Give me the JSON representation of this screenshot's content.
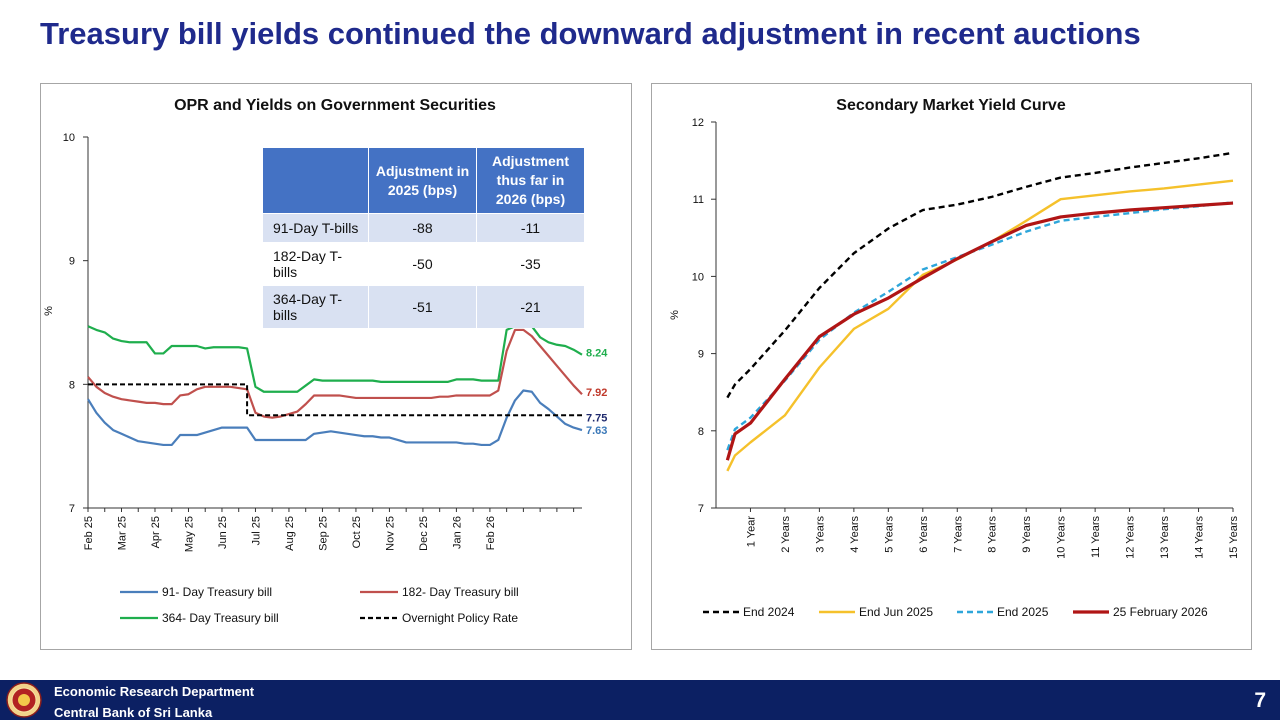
{
  "slide": {
    "title": "Treasury bill yields continued the downward adjustment in recent auctions",
    "footer_line1": "Economic Research Department",
    "footer_line2": "Central Bank of Sri Lanka",
    "page_number": "7"
  },
  "colors": {
    "title": "#1f2a8c",
    "footer": "#0c2063",
    "tbill91": "#4a7ebb",
    "tbill182": "#c0504d",
    "tbill364": "#1fae4d",
    "opr": "#000000",
    "end2024": "#000000",
    "endjun2025": "#f5c12b",
    "end2025": "#2ea6da",
    "feb2026": "#b01515",
    "table_header": "#4472c4"
  },
  "table": {
    "headers": [
      "",
      "Adjustment in 2025 (bps)",
      "Adjustment thus far in 2026 (bps)"
    ],
    "rows": [
      {
        "label": "91-Day T-bills",
        "y2025": "-88",
        "y2026": "-11"
      },
      {
        "label": "182-Day T-bills",
        "y2025": "-50",
        "y2026": "-35"
      },
      {
        "label": "364-Day T-bills",
        "y2025": "-51",
        "y2026": "-21"
      }
    ]
  },
  "chart_data": [
    {
      "type": "line",
      "title": "OPR and Yields on Government Securities",
      "ylabel": "%",
      "ylim": [
        7,
        10
      ],
      "yticks": [
        "7",
        "8",
        "9",
        "10"
      ],
      "x_count": 54,
      "xtick_labels": [
        "Feb 25",
        "Mar 25",
        "Apr 25",
        "May 25",
        "Jun 25",
        "Jul 25",
        "Aug 25",
        "Sep 25",
        "Oct 25",
        "Nov 25",
        "Dec 25",
        "Jan 26",
        "Feb 26"
      ],
      "xtick_index": [
        0,
        4,
        8,
        12,
        16,
        20,
        24,
        28,
        32,
        36,
        40,
        44,
        48
      ],
      "legend_position": "bottom",
      "series": [
        {
          "key": "t91",
          "name": "91- Day Treasury bill",
          "style": "solid",
          "end_label": "7.63",
          "values": [
            7.88,
            7.77,
            7.69,
            7.63,
            7.6,
            7.57,
            7.54,
            7.53,
            7.52,
            7.51,
            7.51,
            7.59,
            7.59,
            7.59,
            7.61,
            7.63,
            7.65,
            7.65,
            7.65,
            7.65,
            7.55,
            7.55,
            7.55,
            7.55,
            7.55,
            7.55,
            7.55,
            7.6,
            7.61,
            7.62,
            7.61,
            7.6,
            7.59,
            7.58,
            7.58,
            7.57,
            7.57,
            7.55,
            7.53,
            7.53,
            7.53,
            7.53,
            7.53,
            7.53,
            7.53,
            7.52,
            7.52,
            7.51,
            7.51,
            7.55,
            7.73,
            7.87,
            7.95,
            7.94
          ]
        },
        {
          "key": "t182",
          "name": "182- Day Treasury bill",
          "style": "solid",
          "end_label": "7.92",
          "values": [
            8.06,
            7.98,
            7.93,
            7.9,
            7.88,
            7.87,
            7.86,
            7.85,
            7.85,
            7.84,
            7.84,
            7.91,
            7.92,
            7.96,
            7.98,
            7.98,
            7.98,
            7.98,
            7.97,
            7.96,
            7.77,
            7.74,
            7.73,
            7.74,
            7.76,
            7.78,
            7.84,
            7.91,
            7.91,
            7.91,
            7.91,
            7.9,
            7.89,
            7.89,
            7.89,
            7.89,
            7.89,
            7.89,
            7.89,
            7.89,
            7.89,
            7.89,
            7.9,
            7.9,
            7.91,
            7.91,
            7.91,
            7.91,
            7.91,
            7.95,
            8.27,
            8.44,
            8.44,
            8.39
          ]
        },
        {
          "key": "t364",
          "name": "364- Day Treasury bill",
          "style": "solid",
          "end_label": "8.24",
          "values": [
            8.47,
            8.44,
            8.42,
            8.37,
            8.35,
            8.34,
            8.34,
            8.34,
            8.25,
            8.25,
            8.31,
            8.31,
            8.31,
            8.31,
            8.29,
            8.3,
            8.3,
            8.3,
            8.3,
            8.29,
            7.98,
            7.94,
            7.94,
            7.94,
            7.94,
            7.94,
            7.99,
            8.04,
            8.03,
            8.03,
            8.03,
            8.03,
            8.03,
            8.03,
            8.03,
            8.02,
            8.02,
            8.02,
            8.02,
            8.02,
            8.02,
            8.02,
            8.02,
            8.02,
            8.04,
            8.04,
            8.04,
            8.03,
            8.03,
            8.03,
            8.44,
            8.47,
            8.48,
            8.47
          ]
        },
        {
          "key": "opr",
          "name": "Overnight Policy Rate",
          "style": "dashed",
          "end_label": "7.75",
          "values": [
            8.0,
            8.0,
            8.0,
            8.0,
            8.0,
            8.0,
            8.0,
            8.0,
            8.0,
            8.0,
            8.0,
            8.0,
            8.0,
            8.0,
            8.0,
            8.0,
            8.0,
            8.0,
            8.0,
            8.0,
            7.75,
            7.75,
            7.75,
            7.75,
            7.75,
            7.75,
            7.75,
            7.75,
            7.75,
            7.75,
            7.75,
            7.75,
            7.75,
            7.75,
            7.75,
            7.75,
            7.75,
            7.75,
            7.75,
            7.75,
            7.75,
            7.75,
            7.75,
            7.75,
            7.75,
            7.75,
            7.75,
            7.75,
            7.75,
            7.75,
            7.75,
            7.75,
            7.75,
            7.75
          ]
        }
      ],
      "series_tail": {
        "t91": [
          7.85,
          7.8,
          7.74,
          7.68,
          7.65,
          7.63
        ],
        "t182": [
          8.31,
          8.23,
          8.15,
          8.07,
          7.99,
          7.92
        ],
        "t364": [
          8.38,
          8.34,
          8.32,
          8.31,
          8.28,
          8.24
        ],
        "opr": [
          7.75,
          7.75,
          7.75,
          7.75,
          7.75,
          7.75
        ]
      }
    },
    {
      "type": "line",
      "title": "Secondary Market Yield Curve",
      "ylabel": "%",
      "ylim": [
        7,
        12
      ],
      "yticks": [
        "7",
        "8",
        "9",
        "10",
        "11",
        "12"
      ],
      "categories": [
        "1 Year",
        "2 Years",
        "3 Years",
        "4 Years",
        "5 Years",
        "6 Years",
        "7 Years",
        "8 Years",
        "9 Years",
        "10 Years",
        "11 Years",
        "12 Years",
        "13 Years",
        "14 Years",
        "15 Years"
      ],
      "x_start": 0.33,
      "legend_position": "bottom",
      "series": [
        {
          "key": "e24",
          "name": "End 2024",
          "style": "dashed",
          "x": [
            0.33,
            0.55,
            1,
            2,
            3,
            4,
            5,
            6,
            7,
            8,
            9,
            10,
            11,
            12,
            13,
            14,
            15
          ],
          "values": [
            8.43,
            8.6,
            8.8,
            9.3,
            9.85,
            10.3,
            10.62,
            10.86,
            10.93,
            11.03,
            11.16,
            11.28,
            11.34,
            11.41,
            11.47,
            11.53,
            11.6
          ]
        },
        {
          "key": "ej25",
          "name": "End Jun 2025",
          "style": "solid",
          "x": [
            0.33,
            0.55,
            1,
            2,
            3,
            4,
            5,
            6,
            7,
            8,
            9,
            10,
            11,
            12,
            13,
            14,
            15
          ],
          "values": [
            7.48,
            7.68,
            7.85,
            8.2,
            8.82,
            9.32,
            9.58,
            10.02,
            10.22,
            10.45,
            10.72,
            11.0,
            11.05,
            11.1,
            11.14,
            11.19,
            11.24
          ]
        },
        {
          "key": "e25",
          "name": "End 2025",
          "style": "dashed",
          "x": [
            0.33,
            0.55,
            1,
            2,
            3,
            4,
            5,
            6,
            7,
            8,
            9,
            10,
            11,
            12,
            13,
            14,
            15
          ],
          "values": [
            7.75,
            8.02,
            8.17,
            8.65,
            9.18,
            9.53,
            9.8,
            10.09,
            10.25,
            10.41,
            10.58,
            10.72,
            10.77,
            10.82,
            10.87,
            10.91,
            10.96
          ]
        },
        {
          "key": "f26",
          "name": "25 February 2026",
          "style": "solid",
          "x": [
            0.33,
            0.55,
            1,
            2,
            3,
            4,
            5,
            6,
            7,
            8,
            9,
            10,
            11,
            12,
            13,
            14,
            15
          ],
          "values": [
            7.62,
            7.96,
            8.1,
            8.67,
            9.22,
            9.51,
            9.72,
            9.98,
            10.23,
            10.45,
            10.66,
            10.77,
            10.82,
            10.86,
            10.89,
            10.92,
            10.95
          ]
        }
      ]
    }
  ]
}
